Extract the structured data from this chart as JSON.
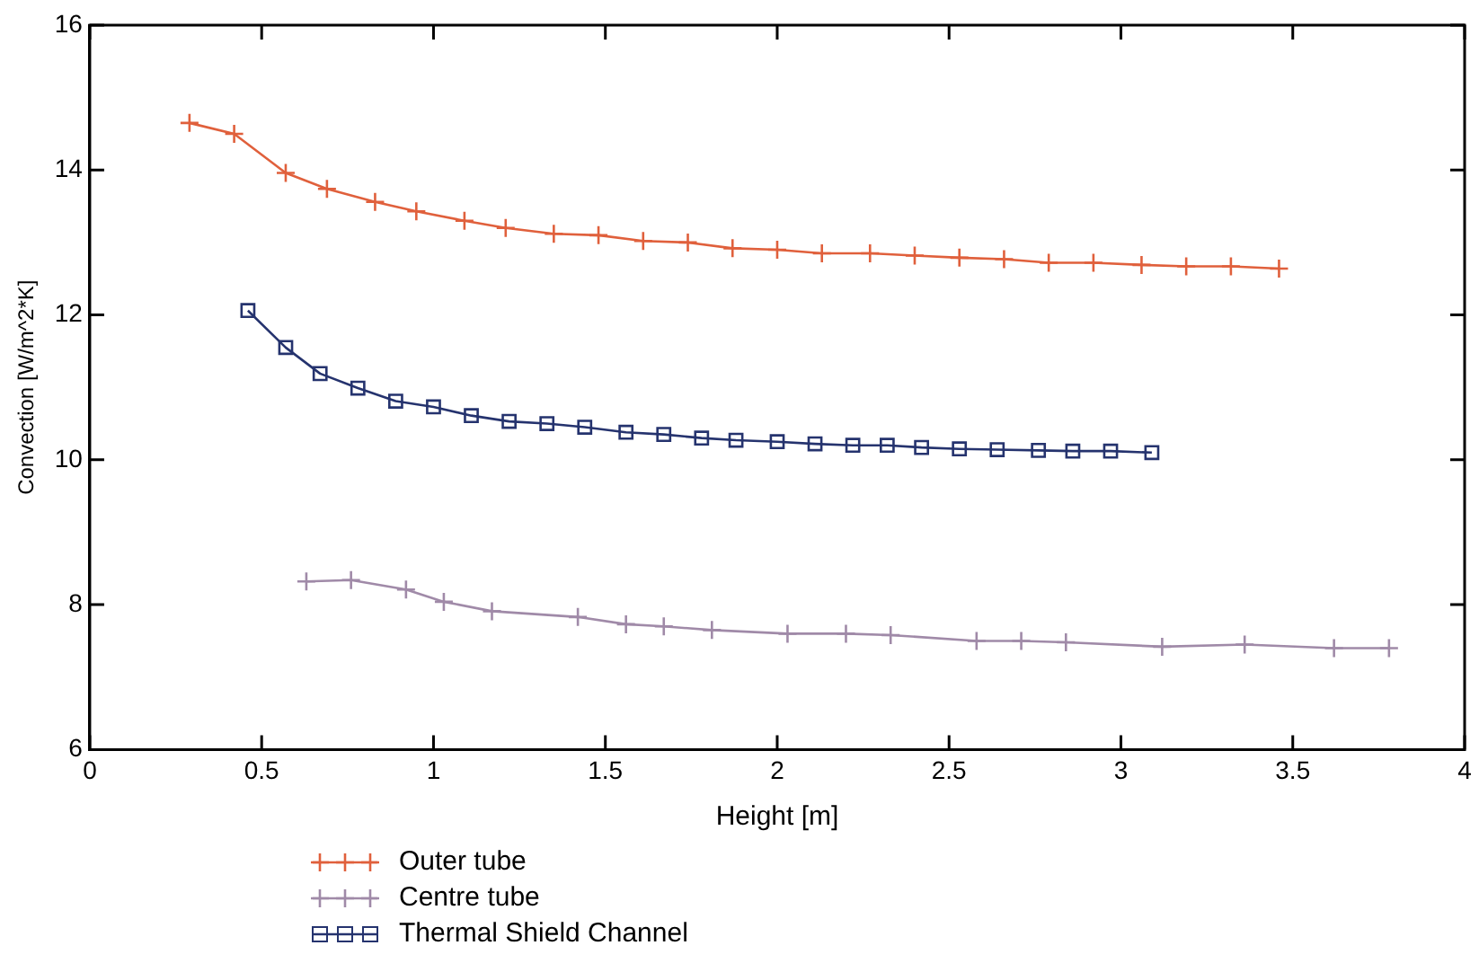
{
  "chart_data": {
    "type": "line",
    "xlabel": "Height [m]",
    "ylabel": "Convection [W/m^2*K]",
    "xlim": [
      0,
      4
    ],
    "xticks": [
      0,
      0.5,
      1,
      1.5,
      2,
      2.5,
      3,
      3.5,
      4
    ],
    "ylim": [
      6,
      16
    ],
    "yticks": [
      6,
      8,
      10,
      12,
      14,
      16
    ],
    "grid": false,
    "legend": "bottom left",
    "line_style": "solid",
    "series": [
      {
        "name": "Outer tube",
        "color": "#e0603c",
        "marker": "cross",
        "x": [
          0.29,
          0.42,
          0.57,
          0.69,
          0.83,
          0.95,
          1.09,
          1.21,
          1.35,
          1.48,
          1.61,
          1.74,
          1.87,
          2.0,
          2.13,
          2.27,
          2.4,
          2.53,
          2.66,
          2.79,
          2.92,
          3.06,
          3.19,
          3.32,
          3.46
        ],
        "values": [
          14.65,
          14.5,
          13.96,
          13.74,
          13.56,
          13.43,
          13.3,
          13.2,
          13.12,
          13.1,
          13.02,
          13.0,
          12.92,
          12.9,
          12.85,
          12.85,
          12.82,
          12.79,
          12.77,
          12.72,
          12.72,
          12.69,
          12.67,
          12.67,
          12.64
        ]
      },
      {
        "name": "Centre tube",
        "color": "#a08aa8",
        "marker": "cross",
        "x": [
          0.63,
          0.76,
          0.92,
          1.03,
          1.17,
          1.42,
          1.56,
          1.67,
          1.81,
          2.03,
          2.2,
          2.33,
          2.58,
          2.71,
          2.84,
          3.12,
          3.36,
          3.62,
          3.78
        ],
        "values": [
          8.32,
          8.34,
          8.21,
          8.04,
          7.91,
          7.83,
          7.73,
          7.7,
          7.65,
          7.6,
          7.6,
          7.58,
          7.5,
          7.5,
          7.48,
          7.42,
          7.45,
          7.4,
          7.4
        ]
      },
      {
        "name": "Thermal Shield Channel",
        "color": "#25336e",
        "marker": "square",
        "x": [
          0.46,
          0.57,
          0.67,
          0.78,
          0.89,
          1.0,
          1.11,
          1.22,
          1.33,
          1.44,
          1.56,
          1.67,
          1.78,
          1.88,
          2.0,
          2.11,
          2.22,
          2.32,
          2.42,
          2.53,
          2.64,
          2.76,
          2.86,
          2.97,
          3.09
        ],
        "values": [
          12.06,
          11.55,
          11.19,
          10.99,
          10.81,
          10.73,
          10.61,
          10.53,
          10.5,
          10.45,
          10.38,
          10.35,
          10.3,
          10.27,
          10.25,
          10.22,
          10.2,
          10.2,
          10.17,
          10.15,
          10.14,
          10.13,
          10.12,
          10.12,
          10.1
        ]
      }
    ]
  }
}
